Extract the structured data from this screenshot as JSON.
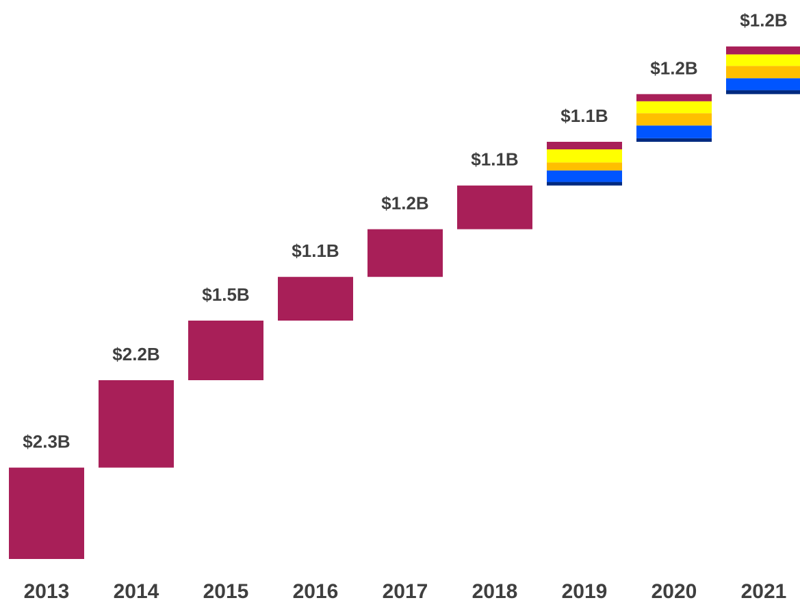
{
  "chart_data": {
    "type": "waterfall",
    "categories": [
      "2013",
      "2014",
      "2015",
      "2016",
      "2017",
      "2018",
      "2019",
      "2020",
      "2021"
    ],
    "totals": [
      2.3,
      2.2,
      1.5,
      1.1,
      1.2,
      1.1,
      1.1,
      1.2,
      1.2
    ],
    "value_labels": [
      "$2.3B",
      "$2.2B",
      "$1.5B",
      "$1.1B",
      "$1.2B",
      "$1.1B",
      "$1.1B",
      "$1.2B",
      "$1.2B"
    ],
    "series": [
      {
        "color": "#002a80",
        "values": [
          null,
          null,
          null,
          null,
          null,
          null,
          0.09,
          0.09,
          0.1
        ]
      },
      {
        "color": "#0055ff",
        "values": [
          null,
          null,
          null,
          null,
          null,
          null,
          0.29,
          0.32,
          0.3
        ]
      },
      {
        "color": "#ffbf00",
        "values": [
          null,
          null,
          null,
          null,
          null,
          null,
          0.2,
          0.31,
          0.31
        ]
      },
      {
        "color": "#ffff00",
        "values": [
          null,
          null,
          null,
          null,
          null,
          null,
          0.33,
          0.3,
          0.29
        ]
      },
      {
        "color": "#a81f58",
        "values": [
          2.3,
          2.2,
          1.5,
          1.1,
          1.2,
          1.1,
          0.19,
          0.18,
          0.2
        ]
      }
    ],
    "ylim": [
      0,
      13
    ]
  }
}
